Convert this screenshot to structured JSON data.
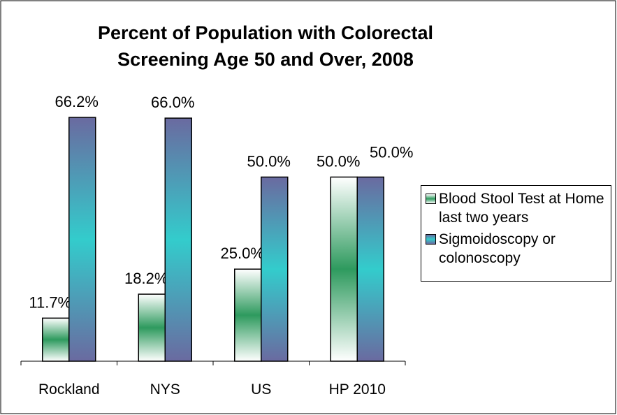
{
  "chart_data": {
    "type": "bar",
    "title": "Percent of Population with Colorectal Screening Age 50 and Over, 2008",
    "categories": [
      "Rockland",
      "NYS",
      "US",
      "HP 2010"
    ],
    "series": [
      {
        "name": "Blood Stool Test at Home last two years",
        "color": "#2e9a5e",
        "values": [
          11.7,
          18.2,
          25.0,
          50.0
        ],
        "value_labels": [
          "11.7%",
          "18.2%",
          "25.0%",
          "50.0%"
        ]
      },
      {
        "name": "Sigmoidoscopy or colonoscopy",
        "color": "#33cccc",
        "values": [
          66.2,
          66.0,
          50.0,
          50.0
        ],
        "value_labels": [
          "66.2%",
          "66.0%",
          "50.0%",
          "50.0%"
        ]
      }
    ],
    "ylim": [
      0,
      70
    ],
    "legend": "right"
  }
}
